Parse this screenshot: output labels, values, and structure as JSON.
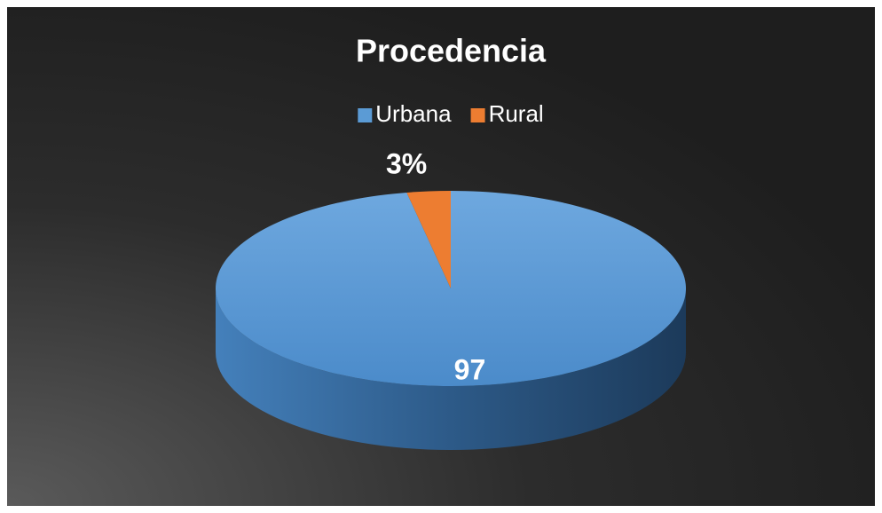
{
  "chart_data": {
    "type": "pie",
    "title": "Procedencia",
    "categories": [
      "Urbana",
      "Rural"
    ],
    "values": [
      97,
      3
    ],
    "value_labels": [
      "97",
      "3%"
    ],
    "colors": [
      "#5b9bd5",
      "#ed7d31"
    ],
    "legend": "top"
  }
}
